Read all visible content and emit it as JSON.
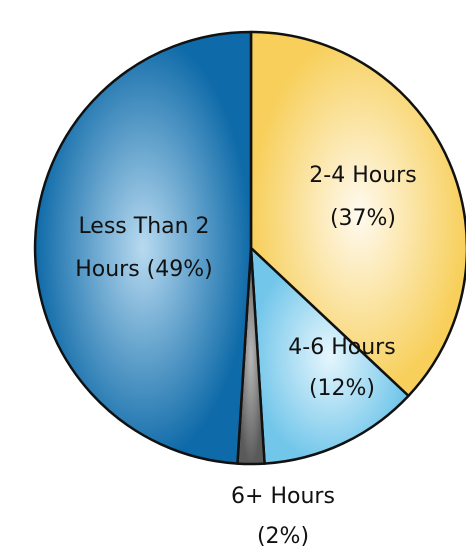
{
  "chart_data": {
    "type": "pie",
    "title": "",
    "slices": [
      {
        "label_line1": "2-4 Hours",
        "label_line2": "(37%)",
        "value": 37,
        "color": "#fde9a8"
      },
      {
        "label_line1": "4-6 Hours",
        "label_line2": "(12%)",
        "value": 12,
        "color": "#a8dcf2"
      },
      {
        "label_line1": "6+ Hours",
        "label_line2": "(2%)",
        "value": 2,
        "color": "#8a8a8a"
      },
      {
        "label_line1": "Less Than 2",
        "label_line2": "Hours (49%)",
        "value": 49,
        "color": "#3b8cc4"
      }
    ],
    "start_angle_deg": 0,
    "direction": "clockwise",
    "legend": "none"
  }
}
